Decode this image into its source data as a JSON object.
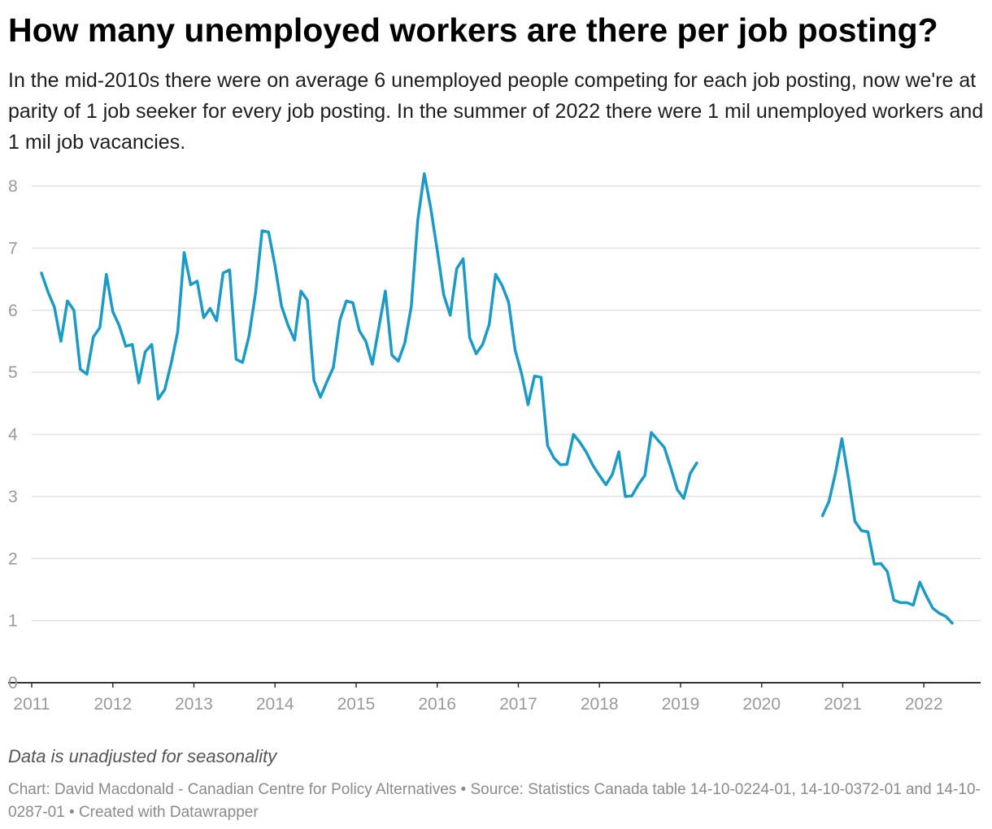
{
  "title": "How many unemployed workers are there per job posting?",
  "subtitle": "In the mid-2010s there were on average 6 unemployed people competing for each job posting, now we're at parity of 1 job seeker for every job posting. In the summer of 2022 there were 1 mil unemployed workers and 1 mil job vacancies.",
  "note": "Data is unadjusted for seasonality",
  "credit": "Chart: David Macdonald - Canadian Centre for Policy Alternatives • Source: Statistics Canada table 14-10-0224-01, 14-10-0372-01 and 14-10-0287-01 • Created with Datawrapper",
  "colors": {
    "line": "#1a9bc7",
    "grid": "#e2e2e2",
    "axis": "#333333",
    "tick_text": "#9a9a9a"
  },
  "chart_data": {
    "type": "line",
    "title": "",
    "xlabel": "",
    "ylabel": "",
    "ylim": [
      0,
      8
    ],
    "yticks": [
      0,
      1,
      2,
      3,
      4,
      5,
      6,
      7,
      8
    ],
    "xlim": [
      2011.0,
      2022.7
    ],
    "xticks": [
      "2011",
      "2012",
      "2013",
      "2014",
      "2015",
      "2016",
      "2017",
      "2018",
      "2019",
      "2020",
      "2021",
      "2022"
    ],
    "grid": true,
    "series": [
      {
        "name": "",
        "segments": [
          [
            [
              2011.12,
              6.6
            ],
            [
              2011.2,
              6.3
            ],
            [
              2011.28,
              6.05
            ],
            [
              2011.36,
              5.5
            ],
            [
              2011.44,
              6.15
            ],
            [
              2011.52,
              6.0
            ],
            [
              2011.6,
              5.05
            ],
            [
              2011.68,
              4.97
            ],
            [
              2011.76,
              5.57
            ],
            [
              2011.84,
              5.72
            ],
            [
              2011.92,
              6.58
            ],
            [
              2012.0,
              5.98
            ],
            [
              2012.08,
              5.75
            ],
            [
              2012.16,
              5.42
            ],
            [
              2012.24,
              5.45
            ],
            [
              2012.32,
              4.83
            ],
            [
              2012.4,
              5.33
            ],
            [
              2012.48,
              5.45
            ],
            [
              2012.56,
              4.57
            ],
            [
              2012.64,
              4.72
            ],
            [
              2012.72,
              5.15
            ],
            [
              2012.8,
              5.65
            ],
            [
              2012.88,
              6.93
            ],
            [
              2012.96,
              6.41
            ],
            [
              2013.04,
              6.47
            ],
            [
              2013.12,
              5.88
            ],
            [
              2013.2,
              6.03
            ],
            [
              2013.28,
              5.83
            ],
            [
              2013.36,
              6.6
            ],
            [
              2013.44,
              6.65
            ],
            [
              2013.52,
              5.21
            ],
            [
              2013.6,
              5.16
            ],
            [
              2013.68,
              5.59
            ],
            [
              2013.76,
              6.28
            ],
            [
              2013.84,
              7.28
            ],
            [
              2013.92,
              7.26
            ],
            [
              2014.0,
              6.72
            ],
            [
              2014.08,
              6.07
            ],
            [
              2014.16,
              5.76
            ],
            [
              2014.24,
              5.52
            ],
            [
              2014.32,
              6.31
            ],
            [
              2014.4,
              6.16
            ],
            [
              2014.48,
              4.87
            ],
            [
              2014.56,
              4.6
            ],
            [
              2014.64,
              4.85
            ],
            [
              2014.72,
              5.08
            ],
            [
              2014.8,
              5.84
            ],
            [
              2014.88,
              6.15
            ],
            [
              2014.96,
              6.12
            ],
            [
              2015.04,
              5.67
            ],
            [
              2015.12,
              5.5
            ],
            [
              2015.2,
              5.13
            ],
            [
              2015.28,
              5.72
            ],
            [
              2015.36,
              6.31
            ],
            [
              2015.44,
              5.28
            ],
            [
              2015.52,
              5.18
            ],
            [
              2015.6,
              5.47
            ],
            [
              2015.68,
              6.06
            ],
            [
              2015.76,
              7.45
            ],
            [
              2015.84,
              8.2
            ],
            [
              2015.92,
              7.65
            ],
            [
              2016.0,
              6.97
            ],
            [
              2016.08,
              6.25
            ],
            [
              2016.16,
              5.92
            ],
            [
              2016.24,
              6.67
            ],
            [
              2016.32,
              6.83
            ],
            [
              2016.4,
              5.56
            ],
            [
              2016.48,
              5.3
            ],
            [
              2016.56,
              5.45
            ],
            [
              2016.64,
              5.77
            ],
            [
              2016.72,
              6.58
            ],
            [
              2016.8,
              6.4
            ],
            [
              2016.88,
              6.13
            ],
            [
              2016.96,
              5.36
            ],
            [
              2017.04,
              4.98
            ],
            [
              2017.12,
              4.48
            ],
            [
              2017.2,
              4.94
            ],
            [
              2017.28,
              4.92
            ],
            [
              2017.36,
              3.82
            ],
            [
              2017.44,
              3.62
            ],
            [
              2017.52,
              3.51
            ],
            [
              2017.6,
              3.52
            ],
            [
              2017.68,
              4.0
            ],
            [
              2017.76,
              3.87
            ],
            [
              2017.84,
              3.71
            ],
            [
              2017.92,
              3.5
            ],
            [
              2018.0,
              3.34
            ],
            [
              2018.08,
              3.19
            ],
            [
              2018.16,
              3.36
            ],
            [
              2018.24,
              3.72
            ],
            [
              2018.32,
              3.0
            ],
            [
              2018.4,
              3.01
            ],
            [
              2018.48,
              3.19
            ],
            [
              2018.56,
              3.34
            ],
            [
              2018.64,
              4.03
            ],
            [
              2018.72,
              3.91
            ],
            [
              2018.8,
              3.79
            ],
            [
              2018.88,
              3.46
            ],
            [
              2018.96,
              3.11
            ],
            [
              2019.04,
              2.97
            ],
            [
              2019.12,
              3.37
            ],
            [
              2019.2,
              3.54
            ]
          ],
          [
            [
              2020.75,
              2.69
            ],
            [
              2020.83,
              2.92
            ],
            [
              2020.91,
              3.38
            ],
            [
              2020.99,
              3.93
            ],
            [
              2021.07,
              3.3
            ],
            [
              2021.15,
              2.6
            ],
            [
              2021.23,
              2.45
            ],
            [
              2021.31,
              2.43
            ],
            [
              2021.39,
              1.91
            ],
            [
              2021.47,
              1.92
            ],
            [
              2021.55,
              1.79
            ],
            [
              2021.63,
              1.33
            ],
            [
              2021.71,
              1.29
            ],
            [
              2021.79,
              1.29
            ],
            [
              2021.87,
              1.25
            ],
            [
              2021.95,
              1.62
            ],
            [
              2022.03,
              1.4
            ],
            [
              2022.11,
              1.2
            ],
            [
              2022.19,
              1.12
            ],
            [
              2022.27,
              1.07
            ],
            [
              2022.35,
              0.96
            ]
          ]
        ]
      }
    ]
  }
}
